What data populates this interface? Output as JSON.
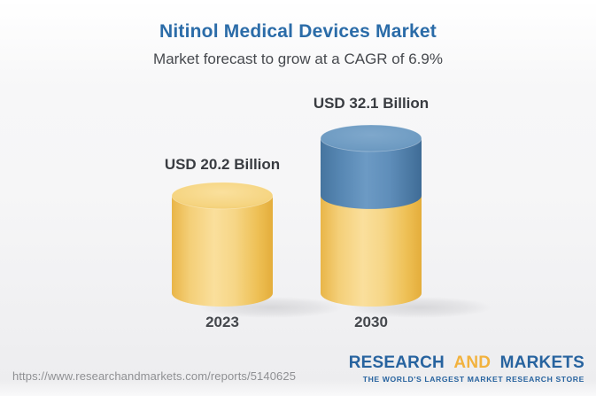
{
  "page": {
    "title": "Nitinol Medical Devices Market",
    "subtitle": "Market forecast to grow at a CAGR of 6.9%"
  },
  "chart_data": {
    "type": "bar",
    "subtype": "3d-cylinder",
    "title": "Nitinol Medical Devices Market",
    "subtitle": "Market forecast to grow at a CAGR of 6.9%",
    "unit": "USD Billion",
    "cagr_pct": 6.9,
    "categories": [
      "2023",
      "2030"
    ],
    "values": [
      20.2,
      32.1
    ],
    "legend": "none",
    "grid": false,
    "axes_visible": false,
    "bars": [
      {
        "category": "2023",
        "value": 20.2,
        "value_label": "USD 20.2 Billion",
        "segments": [
          {
            "name": "base",
            "value": 20.2,
            "palette": "gold",
            "color": "#F2C862"
          }
        ]
      },
      {
        "category": "2030",
        "value": 32.1,
        "value_label": "USD 32.1 Billion",
        "segments": [
          {
            "name": "base",
            "value": 20.2,
            "palette": "gold",
            "color": "#F2C862"
          },
          {
            "name": "growth",
            "value": 11.9,
            "palette": "blue",
            "color": "#5688B5"
          }
        ]
      }
    ],
    "colors": {
      "gold": "#F2C862",
      "blue": "#5688B5"
    }
  },
  "footer": {
    "source_url": "https://www.researchandmarkets.com/reports/5140625",
    "logo": {
      "word1": "RESEARCH",
      "word2": "AND",
      "word3": "MARKETS",
      "tagline": "THE WORLD'S LARGEST MARKET RESEARCH STORE",
      "blue": "#27639F",
      "gold": "#F2B23E"
    }
  }
}
